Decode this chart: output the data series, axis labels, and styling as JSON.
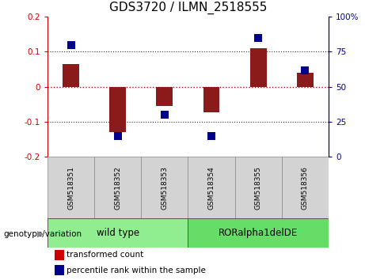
{
  "title": "GDS3720 / ILMN_2518555",
  "samples": [
    "GSM518351",
    "GSM518352",
    "GSM518353",
    "GSM518354",
    "GSM518355",
    "GSM518356"
  ],
  "transformed_count": [
    0.065,
    -0.13,
    -0.055,
    -0.072,
    0.11,
    0.04
  ],
  "percentile_rank": [
    80,
    15,
    30,
    15,
    85,
    62
  ],
  "ylim_left": [
    -0.2,
    0.2
  ],
  "ylim_right": [
    0,
    100
  ],
  "yticks_left": [
    -0.2,
    -0.1,
    0.0,
    0.1,
    0.2
  ],
  "ytick_labels_left": [
    "-0.2",
    "-0.1",
    "0",
    "0.1",
    "0.2"
  ],
  "yticks_right": [
    0,
    25,
    50,
    75,
    100
  ],
  "ytick_labels_right": [
    "0",
    "25",
    "50",
    "75",
    "100%"
  ],
  "bar_color": "#8B1A1A",
  "square_color": "#00008B",
  "zero_line_color": "#CC0000",
  "dotted_line_color": "#333333",
  "groups": [
    {
      "label": "wild type",
      "indices": [
        0,
        1,
        2
      ],
      "color": "#90EE90"
    },
    {
      "label": "RORalpha1delDE",
      "indices": [
        3,
        4,
        5
      ],
      "color": "#66DD66"
    }
  ],
  "genotype_label": "genotype/variation",
  "legend_items": [
    {
      "label": "transformed count",
      "color": "#CC0000"
    },
    {
      "label": "percentile rank within the sample",
      "color": "#00008B"
    }
  ],
  "bar_width": 0.35,
  "square_size": 55,
  "title_fontsize": 11,
  "tick_fontsize": 7.5,
  "sample_fontsize": 6.5,
  "group_label_fontsize": 8.5,
  "genotype_fontsize": 7.5,
  "legend_fontsize": 7.5
}
